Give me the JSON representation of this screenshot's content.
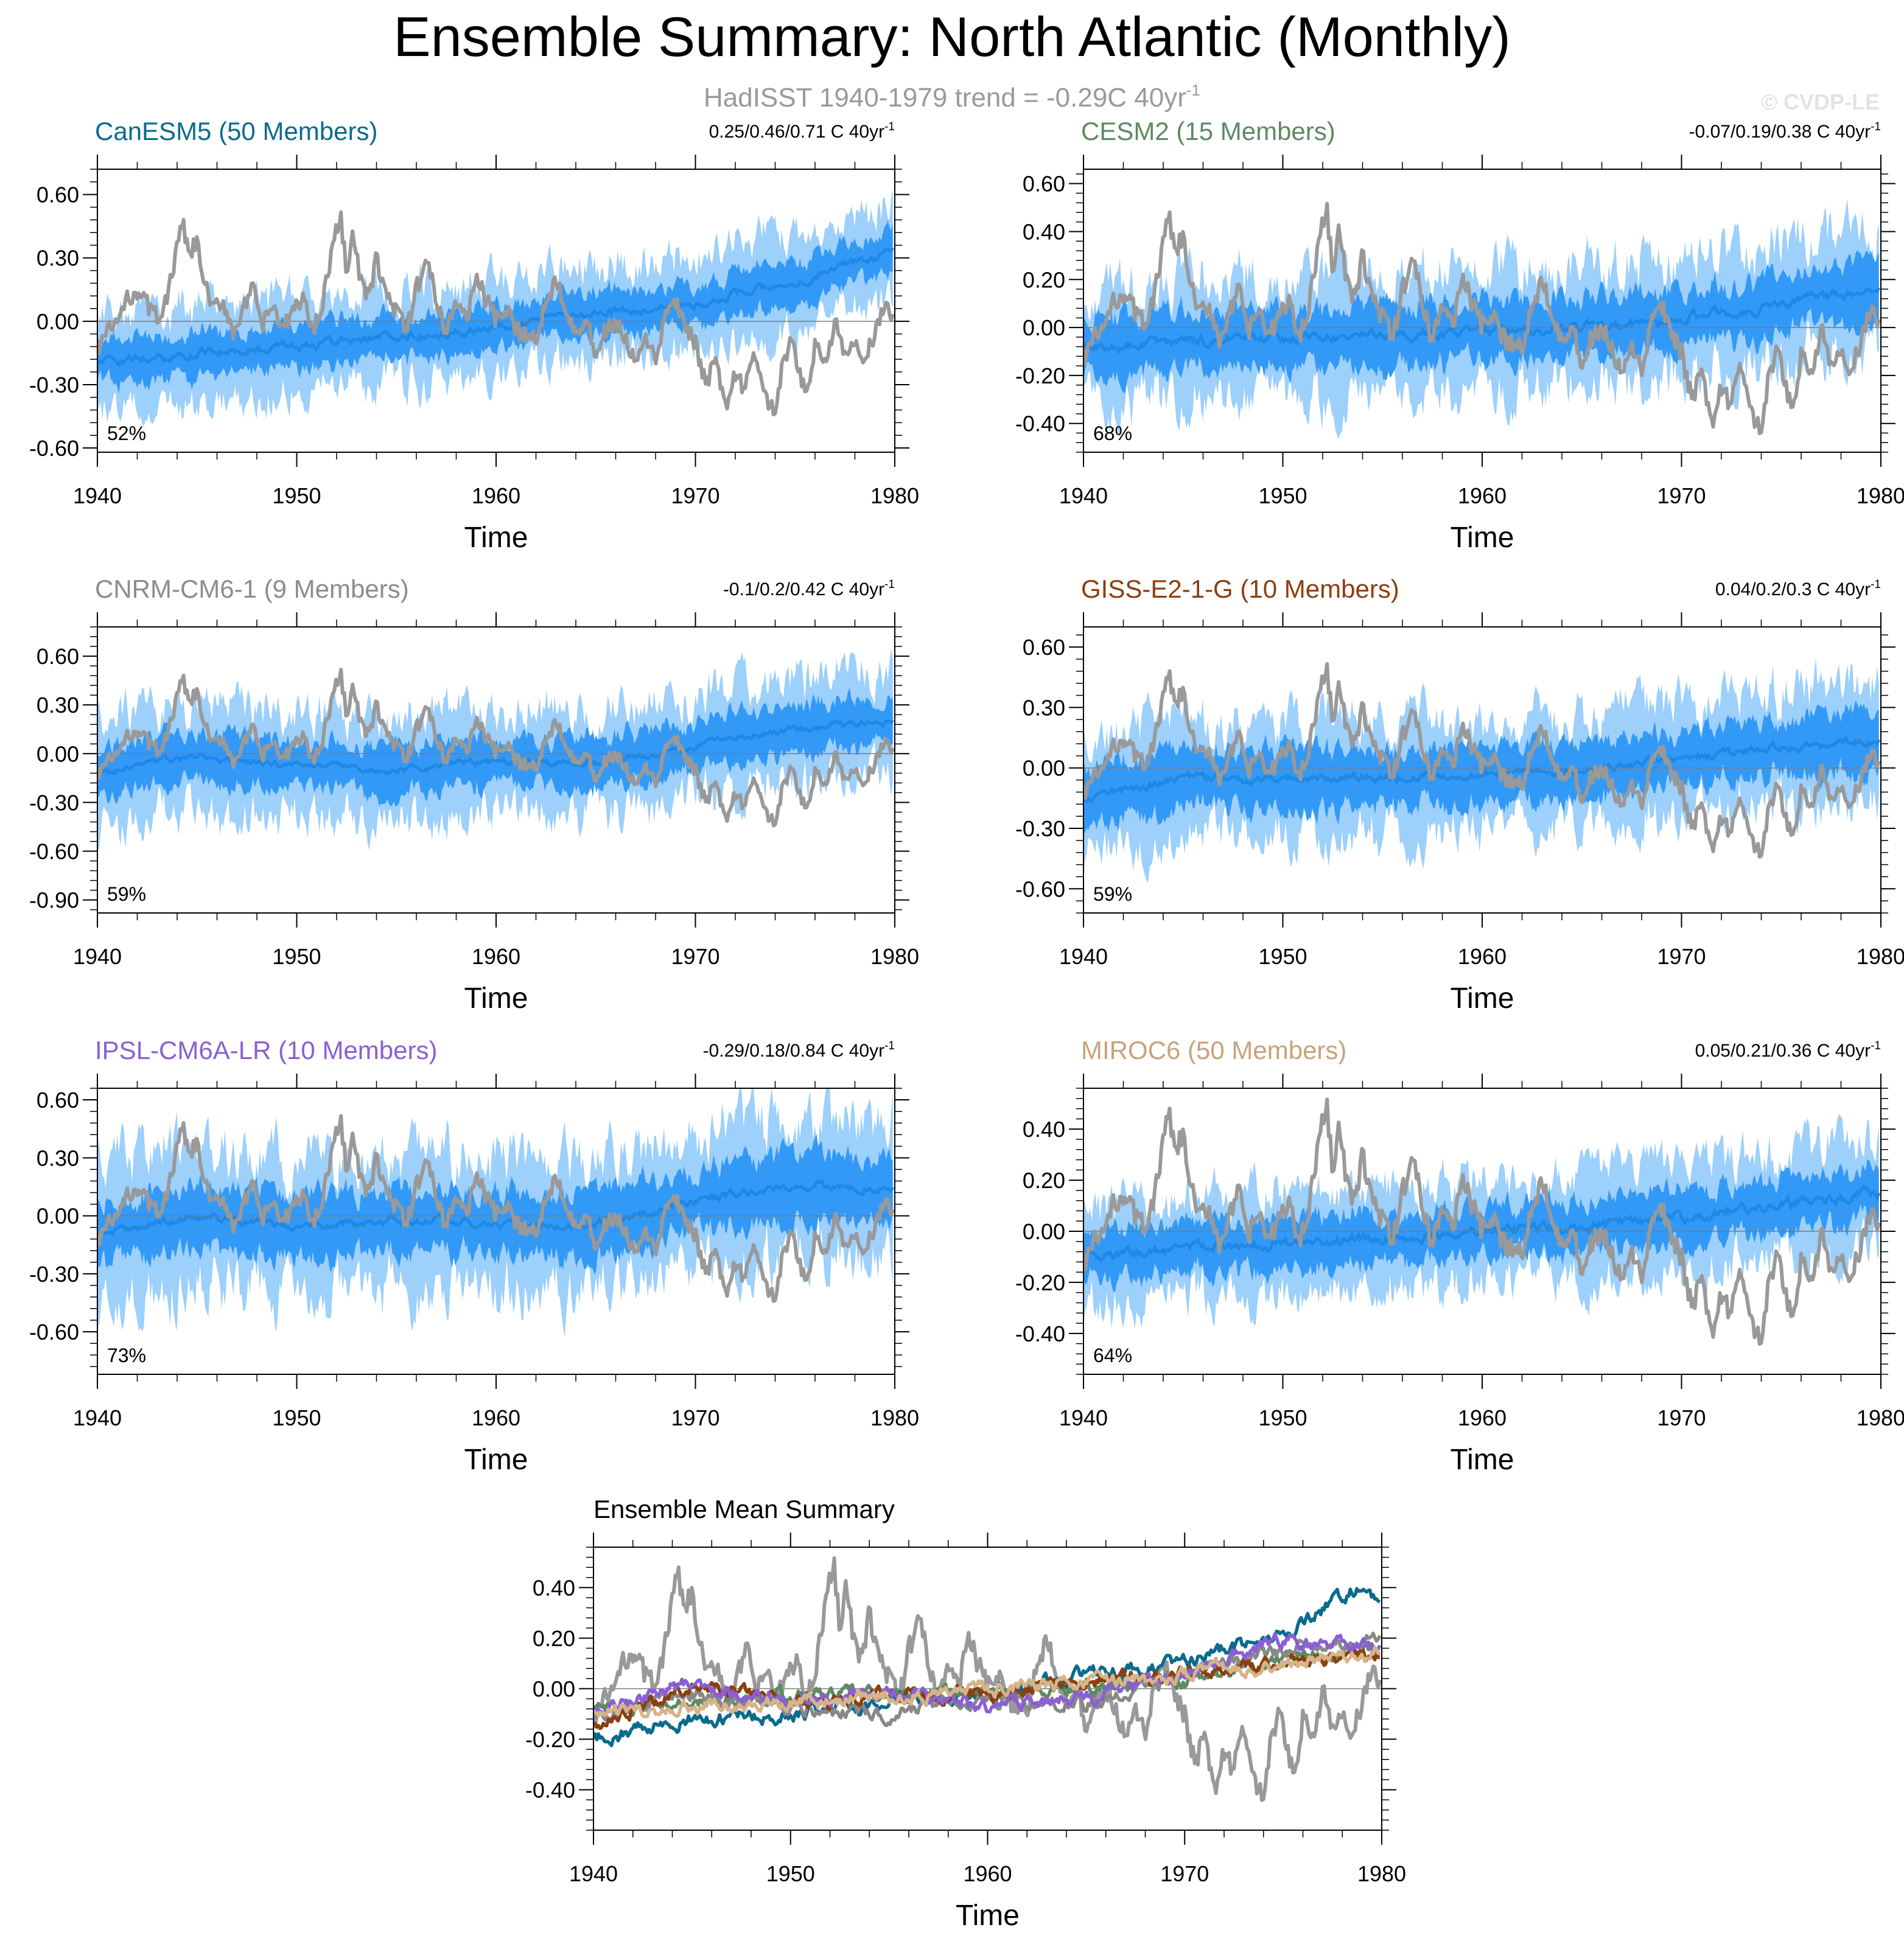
{
  "title": "Ensemble Summary: North Atlantic (Monthly)",
  "subtitle": {
    "text": "HadISST 1940-1979 trend = -0.29C 40yr",
    "sup": "-1"
  },
  "watermark": "© CVDP-LE",
  "colors": {
    "obs": "#999999",
    "band_outer": "#9dd0fb",
    "band_inner": "#3399f7",
    "ens_mean": "#1e88e5",
    "zero_line": "#7a7a7a"
  },
  "chart_data": [
    {
      "type": "line",
      "title": "CanESM5 (50 Members)",
      "title_color": "#0b6b8c",
      "trend_text": "0.25/0.46/0.71 C 40yr",
      "trend_sup": "-1",
      "percent": "52%",
      "xlabel": "Time",
      "xticks": [
        "1940",
        "1950",
        "1960",
        "1970",
        "1980"
      ],
      "xlim": [
        1940,
        1980
      ],
      "ylim": [
        -0.62,
        0.72
      ],
      "yticks": [
        0.6,
        0.3,
        0.0,
        -0.3,
        -0.6
      ],
      "ytick_labels": [
        "0.60",
        "0.30",
        "0.00",
        "-0.30",
        "-0.60"
      ],
      "ensemble_mean": {
        "x": [
          1940,
          1945,
          1950,
          1955,
          1960,
          1965,
          1970,
          1975,
          1979.9
        ],
        "y": [
          -0.2,
          -0.15,
          -0.12,
          -0.07,
          -0.03,
          0.04,
          0.09,
          0.18,
          0.33
        ]
      },
      "inner_halfwidth": 0.1,
      "outer_halfwidth": 0.22
    },
    {
      "type": "line",
      "title": "CESM2 (15 Members)",
      "title_color": "#5d8a62",
      "trend_text": "-0.07/0.19/0.38 C 40yr",
      "trend_sup": "-1",
      "percent": "68%",
      "xlabel": "Time",
      "xticks": [
        "1940",
        "1950",
        "1960",
        "1970",
        "1980"
      ],
      "xlim": [
        1940,
        1980
      ],
      "ylim": [
        -0.52,
        0.66
      ],
      "yticks": [
        0.6,
        0.4,
        0.2,
        0.0,
        -0.2,
        -0.4
      ],
      "ytick_labels": [
        "0.60",
        "0.40",
        "0.20",
        "0.00",
        "-0.20",
        "-0.40"
      ],
      "ensemble_mean": {
        "x": [
          1940,
          1945,
          1950,
          1955,
          1960,
          1965,
          1970,
          1975,
          1979.9
        ],
        "y": [
          -0.09,
          -0.06,
          -0.04,
          -0.03,
          -0.02,
          0.0,
          0.03,
          0.1,
          0.16
        ]
      },
      "inner_halfwidth": 0.12,
      "outer_halfwidth": 0.25
    },
    {
      "type": "line",
      "title": "CNRM-CM6-1 (9 Members)",
      "title_color": "#8c8c8c",
      "trend_text": "-0.1/0.2/0.42 C 40yr",
      "trend_sup": "-1",
      "percent": "59%",
      "xlabel": "Time",
      "xticks": [
        "1940",
        "1950",
        "1960",
        "1970",
        "1980"
      ],
      "xlim": [
        1940,
        1980
      ],
      "ylim": [
        -0.98,
        0.78
      ],
      "yticks": [
        0.6,
        0.3,
        0.0,
        -0.3,
        -0.6,
        -0.9
      ],
      "ytick_labels": [
        "0.60",
        "0.30",
        "0.00",
        "-0.30",
        "-0.60",
        "-0.90"
      ],
      "ensemble_mean": {
        "x": [
          1940,
          1945,
          1950,
          1955,
          1960,
          1965,
          1970,
          1975,
          1979.9
        ],
        "y": [
          -0.12,
          -0.02,
          -0.08,
          -0.1,
          -0.04,
          -0.06,
          0.05,
          0.15,
          0.2
        ]
      },
      "inner_halfwidth": 0.15,
      "outer_halfwidth": 0.32
    },
    {
      "type": "line",
      "title": "GISS-E2-1-G (10 Members)",
      "title_color": "#8b3f0e",
      "trend_text": "0.04/0.2/0.3 C 40yr",
      "trend_sup": "-1",
      "percent": "59%",
      "xlabel": "Time",
      "xticks": [
        "1940",
        "1950",
        "1960",
        "1970",
        "1980"
      ],
      "xlim": [
        1940,
        1980
      ],
      "ylim": [
        -0.72,
        0.7
      ],
      "yticks": [
        0.6,
        0.3,
        0.0,
        -0.3,
        -0.6
      ],
      "ytick_labels": [
        "0.60",
        "0.30",
        "0.00",
        "-0.30",
        "-0.60"
      ],
      "ensemble_mean": {
        "x": [
          1940,
          1945,
          1950,
          1955,
          1960,
          1965,
          1970,
          1975,
          1979.9
        ],
        "y": [
          -0.15,
          -0.05,
          -0.06,
          -0.04,
          -0.03,
          -0.01,
          0.04,
          0.1,
          0.14
        ]
      },
      "inner_halfwidth": 0.14,
      "outer_halfwidth": 0.28
    },
    {
      "type": "line",
      "title": "IPSL-CM6A-LR (10 Members)",
      "title_color": "#8a5fd6",
      "trend_text": "-0.29/0.18/0.84 C 40yr",
      "trend_sup": "-1",
      "percent": "73%",
      "xlabel": "Time",
      "xticks": [
        "1940",
        "1950",
        "1960",
        "1970",
        "1980"
      ],
      "xlim": [
        1940,
        1980
      ],
      "ylim": [
        -0.82,
        0.66
      ],
      "yticks": [
        0.6,
        0.3,
        0.0,
        -0.3,
        -0.6
      ],
      "ytick_labels": [
        "0.60",
        "0.30",
        "0.00",
        "-0.30",
        "-0.60"
      ],
      "ensemble_mean": {
        "x": [
          1940,
          1945,
          1950,
          1955,
          1960,
          1965,
          1970,
          1975,
          1979.9
        ],
        "y": [
          -0.1,
          0.0,
          -0.06,
          -0.02,
          -0.05,
          -0.04,
          0.08,
          0.15,
          0.15
        ]
      },
      "inner_halfwidth": 0.16,
      "outer_halfwidth": 0.34
    },
    {
      "type": "line",
      "title": "MIROC6 (50 Members)",
      "title_color": "#c9a27a",
      "trend_text": "0.05/0.21/0.36 C 40yr",
      "trend_sup": "-1",
      "percent": "64%",
      "xlabel": "Time",
      "xticks": [
        "1940",
        "1950",
        "1960",
        "1970",
        "1980"
      ],
      "xlim": [
        1940,
        1980
      ],
      "ylim": [
        -0.56,
        0.56
      ],
      "yticks": [
        0.4,
        0.2,
        0.0,
        -0.2,
        -0.4
      ],
      "ytick_labels": [
        "0.40",
        "0.20",
        "0.00",
        "-0.20",
        "-0.40"
      ],
      "ensemble_mean": {
        "x": [
          1940,
          1945,
          1950,
          1955,
          1960,
          1965,
          1970,
          1975,
          1979.9
        ],
        "y": [
          -0.1,
          -0.07,
          -0.05,
          -0.03,
          0.0,
          0.02,
          0.05,
          0.1,
          0.15
        ]
      },
      "inner_halfwidth": 0.1,
      "outer_halfwidth": 0.2
    },
    {
      "type": "line",
      "title": "Ensemble Mean Summary",
      "title_color": "#000000",
      "xlabel": "Time",
      "xticks": [
        "1940",
        "1950",
        "1960",
        "1970",
        "1980"
      ],
      "xlim": [
        1940,
        1980
      ],
      "ylim": [
        -0.56,
        0.56
      ],
      "yticks": [
        0.4,
        0.2,
        0.0,
        -0.2,
        -0.4
      ],
      "ytick_labels": [
        "0.40",
        "0.20",
        "0.00",
        "-0.20",
        "-0.40"
      ],
      "series": [
        {
          "name": "CanESM5",
          "color": "#0b6b8c",
          "x": [
            1940,
            1945,
            1950,
            1955,
            1960,
            1965,
            1970,
            1975,
            1979,
            1979.9
          ],
          "y": [
            -0.2,
            -0.12,
            -0.1,
            -0.06,
            -0.02,
            0.06,
            0.1,
            0.22,
            0.41,
            0.33
          ]
        },
        {
          "name": "CESM2",
          "color": "#5d8a62",
          "x": [
            1940,
            1945,
            1950,
            1955,
            1960,
            1965,
            1970,
            1975,
            1979.9
          ],
          "y": [
            -0.09,
            -0.06,
            -0.03,
            -0.02,
            -0.01,
            0.0,
            0.03,
            0.12,
            0.16
          ]
        },
        {
          "name": "CNRM-CM6-1",
          "color": "#888888",
          "x": [
            1940,
            1945,
            1950,
            1955,
            1960,
            1965,
            1970,
            1975,
            1979.9
          ],
          "y": [
            -0.12,
            -0.02,
            -0.08,
            -0.1,
            -0.04,
            -0.06,
            0.05,
            0.15,
            0.2
          ]
        },
        {
          "name": "GISS-E2-1-G",
          "color": "#8b3f0e",
          "x": [
            1940,
            1945,
            1950,
            1955,
            1960,
            1965,
            1970,
            1975,
            1979.9
          ],
          "y": [
            -0.15,
            0.02,
            -0.05,
            -0.03,
            -0.02,
            0.03,
            0.06,
            0.1,
            0.14
          ]
        },
        {
          "name": "IPSL-CM6A-LR",
          "color": "#8a5fd6",
          "x": [
            1940,
            1945,
            1950,
            1955,
            1960,
            1965,
            1970,
            1975,
            1979.9
          ],
          "y": [
            -0.1,
            0.03,
            -0.06,
            -0.02,
            -0.07,
            -0.04,
            0.06,
            0.2,
            0.15
          ]
        },
        {
          "name": "MIROC6",
          "color": "#d6b48a",
          "x": [
            1940,
            1945,
            1950,
            1955,
            1960,
            1965,
            1970,
            1975,
            1979.9
          ],
          "y": [
            -0.1,
            -0.07,
            -0.05,
            -0.03,
            0.0,
            0.02,
            0.05,
            0.1,
            0.15
          ]
        }
      ]
    }
  ],
  "observations_hadisst": {
    "name": "HadISST",
    "x": [
      1940.0,
      1940.5,
      1941.0,
      1941.5,
      1942.0,
      1942.5,
      1943.0,
      1943.5,
      1944.0,
      1944.3,
      1944.6,
      1945.0,
      1945.3,
      1945.8,
      1946.3,
      1946.8,
      1947.3,
      1947.8,
      1948.3,
      1948.8,
      1949.3,
      1949.8,
      1950.3,
      1950.8,
      1951.3,
      1951.8,
      1952.2,
      1952.5,
      1952.8,
      1953.2,
      1953.6,
      1954.0,
      1954.5,
      1955.0,
      1955.5,
      1956.0,
      1956.5,
      1957.0,
      1957.5,
      1958.0,
      1958.5,
      1959.0,
      1959.5,
      1960.0,
      1960.5,
      1961.0,
      1961.5,
      1962.0,
      1962.5,
      1963.0,
      1963.5,
      1964.0,
      1964.5,
      1965.0,
      1965.5,
      1966.0,
      1966.5,
      1967.0,
      1967.5,
      1968.0,
      1968.5,
      1969.0,
      1969.5,
      1970.0,
      1970.5,
      1971.0,
      1971.5,
      1972.0,
      1972.5,
      1973.0,
      1973.5,
      1974.0,
      1974.4,
      1974.8,
      1975.2,
      1975.6,
      1976.0,
      1976.5,
      1977.0,
      1977.5,
      1978.0,
      1978.5,
      1979.0,
      1979.5,
      1979.9
    ],
    "y": [
      -0.12,
      -0.05,
      0.0,
      0.1,
      0.15,
      0.08,
      0.02,
      0.1,
      0.35,
      0.46,
      0.3,
      0.38,
      0.2,
      0.05,
      0.1,
      -0.05,
      0.05,
      0.15,
      -0.02,
      0.08,
      -0.05,
      0.05,
      0.12,
      -0.05,
      0.1,
      0.35,
      0.5,
      0.25,
      0.4,
      0.2,
      0.1,
      0.3,
      0.12,
      0.05,
      -0.05,
      0.15,
      0.3,
      0.1,
      -0.05,
      0.1,
      0.0,
      0.22,
      0.1,
      0.0,
      0.05,
      -0.05,
      -0.05,
      -0.1,
      0.1,
      0.2,
      0.08,
      -0.05,
      0.0,
      -0.15,
      -0.05,
      0.0,
      -0.1,
      -0.2,
      -0.1,
      -0.18,
      0.02,
      0.1,
      -0.05,
      -0.1,
      -0.3,
      -0.2,
      -0.4,
      -0.25,
      -0.32,
      -0.15,
      -0.35,
      -0.45,
      -0.2,
      -0.1,
      -0.25,
      -0.35,
      -0.1,
      -0.2,
      0.0,
      -0.18,
      -0.1,
      -0.2,
      -0.05,
      0.08,
      0.02
    ]
  }
}
